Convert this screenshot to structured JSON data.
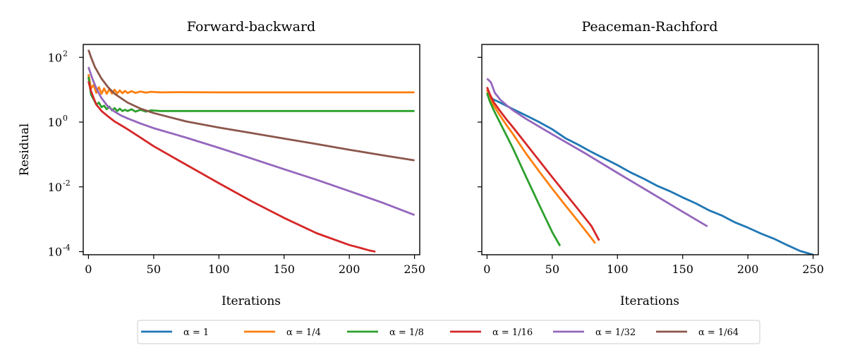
{
  "chart_data": [
    {
      "type": "line",
      "title": "Forward-backward",
      "xlabel": "Iterations",
      "ylabel": "Residual",
      "yscale": "log",
      "xlim": [
        -4,
        254
      ],
      "ylim": [
        8e-05,
        250
      ],
      "xticks": [
        0,
        50,
        100,
        150,
        200,
        250
      ],
      "yticks": [
        {
          "value": 0.0001,
          "base": "10",
          "exp": "-4"
        },
        {
          "value": 0.01,
          "base": "10",
          "exp": "-2"
        },
        {
          "value": 1,
          "base": "10",
          "exp": "0"
        },
        {
          "value": 100,
          "base": "10",
          "exp": "2"
        }
      ],
      "grid": false,
      "series": [
        {
          "name": "α = 1/4",
          "color": "#ff7f0e",
          "x": [
            0,
            2,
            4,
            6,
            8,
            10,
            12,
            14,
            16,
            18,
            20,
            22,
            24,
            26,
            28,
            30,
            33,
            36,
            40,
            44,
            48,
            55,
            70,
            100,
            150,
            200,
            250
          ],
          "y": [
            30,
            11,
            14,
            8,
            12,
            7.5,
            11,
            7.5,
            10.5,
            7.6,
            10,
            7.7,
            9.5,
            7.8,
            9.2,
            7.9,
            9,
            8,
            8.8,
            8.1,
            8.6,
            8.3,
            8.4,
            8.3,
            8.3,
            8.3,
            8.3
          ]
        },
        {
          "name": "α = 1/8",
          "color": "#2ca02c",
          "x": [
            0,
            2,
            4,
            6,
            8,
            10,
            12,
            14,
            16,
            18,
            20,
            22,
            24,
            26,
            28,
            30,
            33,
            36,
            40,
            44,
            48,
            55,
            70,
            100,
            150,
            200,
            250
          ],
          "y": [
            25,
            7,
            5,
            3.5,
            4,
            2.9,
            3.2,
            2.5,
            3,
            2.3,
            2.7,
            2.2,
            2.6,
            2.2,
            2.4,
            2.2,
            2.5,
            2.1,
            2.4,
            2.1,
            2.3,
            2.2,
            2.2,
            2.2,
            2.2,
            2.2,
            2.2
          ]
        },
        {
          "name": "α = 1/16",
          "color": "#d62728",
          "x": [
            0,
            2,
            4,
            6,
            10,
            15,
            20,
            25,
            30,
            40,
            50,
            75,
            100,
            125,
            150,
            175,
            200,
            210,
            215,
            220
          ],
          "y": [
            18,
            9,
            5.5,
            3.5,
            2.2,
            1.5,
            1.05,
            0.8,
            0.6,
            0.33,
            0.18,
            0.048,
            0.013,
            0.0036,
            0.0011,
            0.00037,
            0.00016,
            0.000125,
            0.00011,
            0.0001
          ]
        },
        {
          "name": "α = 1/32",
          "color": "#9467bd",
          "x": [
            0,
            3,
            6,
            10,
            15,
            20,
            25,
            30,
            40,
            50,
            75,
            100,
            125,
            150,
            175,
            200,
            225,
            250
          ],
          "y": [
            50,
            22,
            11,
            5.5,
            3,
            2.1,
            1.6,
            1.3,
            0.9,
            0.65,
            0.33,
            0.16,
            0.075,
            0.035,
            0.0165,
            0.0074,
            0.0033,
            0.00135
          ]
        },
        {
          "name": "α = 1/64",
          "color": "#8c564b",
          "x": [
            0,
            2,
            5,
            10,
            15,
            20,
            30,
            40,
            50,
            75,
            100,
            125,
            150,
            175,
            200,
            225,
            250
          ],
          "y": [
            170,
            100,
            50,
            22,
            12,
            7.5,
            4,
            2.6,
            1.9,
            1.05,
            0.68,
            0.46,
            0.31,
            0.21,
            0.14,
            0.095,
            0.066
          ]
        }
      ]
    },
    {
      "type": "line",
      "title": "Peaceman-Rachford",
      "xlabel": "Iterations",
      "ylabel": "",
      "yscale": "log",
      "xlim": [
        -4,
        254
      ],
      "ylim": [
        8e-05,
        250
      ],
      "xticks": [
        0,
        50,
        100,
        150,
        200,
        250
      ],
      "yticks": [
        {
          "value": 0.0001
        },
        {
          "value": 0.01
        },
        {
          "value": 1
        },
        {
          "value": 100
        }
      ],
      "grid": false,
      "series": [
        {
          "name": "α = 1",
          "color": "#1f77b4",
          "x": [
            0,
            5,
            10,
            20,
            30,
            40,
            50,
            60,
            70,
            80,
            90,
            100,
            110,
            120,
            130,
            140,
            150,
            160,
            170,
            180,
            190,
            200,
            210,
            220,
            230,
            240,
            250
          ],
          "y": [
            7,
            5,
            4,
            2.5,
            1.6,
            1,
            0.6,
            0.32,
            0.2,
            0.12,
            0.075,
            0.047,
            0.028,
            0.018,
            0.011,
            0.0074,
            0.0047,
            0.0031,
            0.0019,
            0.0013,
            0.0008,
            0.00055,
            0.00036,
            0.00025,
            0.00016,
            0.000105,
            7e-05
          ]
        },
        {
          "name": "α = 1/4",
          "color": "#ff7f0e",
          "x": [
            0,
            2,
            5,
            10,
            15,
            20,
            25,
            30,
            40,
            50,
            60,
            70,
            80,
            83
          ],
          "y": [
            10,
            6,
            3.3,
            1.6,
            0.8,
            0.42,
            0.21,
            0.105,
            0.03,
            0.0088,
            0.0027,
            0.00085,
            0.00026,
            0.00018
          ]
        },
        {
          "name": "α = 1/8",
          "color": "#2ca02c",
          "x": [
            0,
            2,
            5,
            10,
            15,
            20,
            25,
            30,
            35,
            40,
            45,
            50,
            56
          ],
          "y": [
            8,
            4.5,
            2.4,
            0.95,
            0.38,
            0.15,
            0.055,
            0.02,
            0.0075,
            0.0028,
            0.00105,
            0.0004,
            0.00015
          ]
        },
        {
          "name": "α = 1/16",
          "color": "#d62728",
          "x": [
            0,
            2,
            5,
            10,
            15,
            20,
            30,
            40,
            50,
            60,
            70,
            80,
            86
          ],
          "y": [
            12,
            7.5,
            4.2,
            2.2,
            1.2,
            0.68,
            0.21,
            0.065,
            0.02,
            0.0063,
            0.002,
            0.00062,
            0.00022
          ]
        },
        {
          "name": "α = 1/32",
          "color": "#9467bd",
          "x": [
            0,
            3,
            6,
            10,
            15,
            20,
            30,
            50,
            75,
            100,
            125,
            150,
            169
          ],
          "y": [
            22,
            17,
            8,
            5,
            3.3,
            2.3,
            1.25,
            0.42,
            0.11,
            0.027,
            0.0068,
            0.0017,
            0.0006
          ]
        }
      ]
    }
  ],
  "legend": {
    "placement": "bottom-center",
    "entries": [
      {
        "label": "α = 1",
        "color": "#1f77b4"
      },
      {
        "label": "α = 1/4",
        "color": "#ff7f0e"
      },
      {
        "label": "α = 1/8",
        "color": "#2ca02c"
      },
      {
        "label": "α = 1/16",
        "color": "#d62728"
      },
      {
        "label": "α = 1/32",
        "color": "#9467bd"
      },
      {
        "label": "α = 1/64",
        "color": "#8c564b"
      }
    ]
  }
}
